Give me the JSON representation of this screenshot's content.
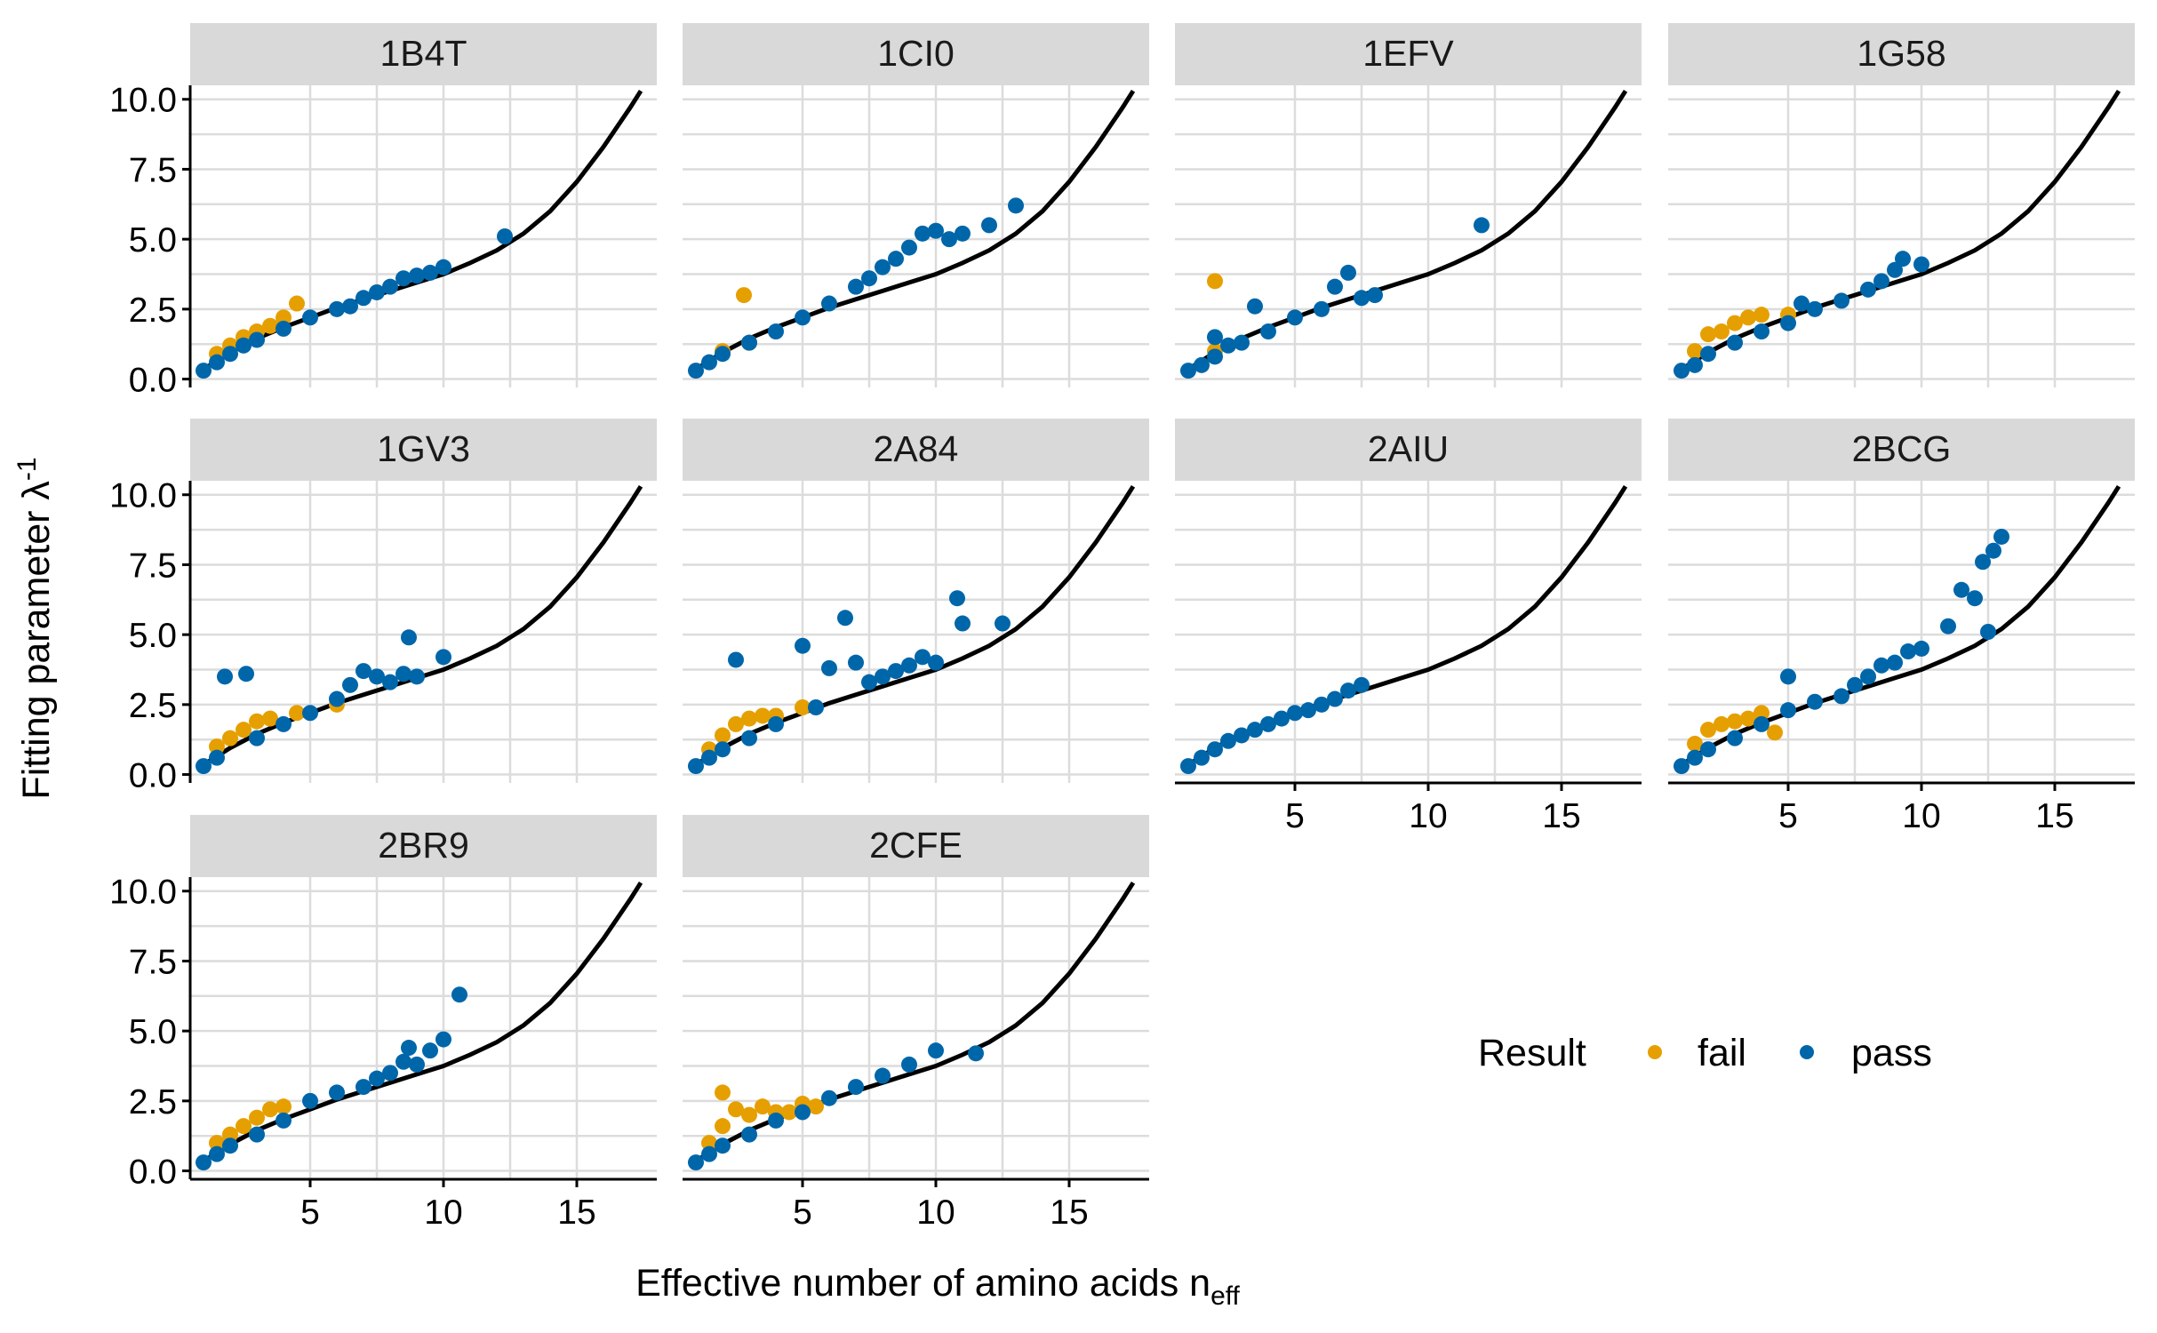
{
  "chart_data": {
    "type": "scatter",
    "facet_layout": "4 columns x 3 rows",
    "xlabel": "Effective number of amino acids n",
    "xlabel_subscript": "eff",
    "ylabel": "Fitting parameter λ",
    "ylabel_superscript": "-1",
    "xlim": [
      0.5,
      18
    ],
    "ylim": [
      -0.3,
      10.5
    ],
    "x_ticks": [
      "5",
      "10",
      "15"
    ],
    "y_ticks": [
      "0.0",
      "2.5",
      "5.0",
      "7.5",
      "10.0"
    ],
    "grid": true,
    "legend": {
      "title": "Result",
      "position": "bottom-right",
      "entries": [
        {
          "label": "fail",
          "color": "#E69F00"
        },
        {
          "label": "pass",
          "color": "#0066AA"
        }
      ]
    },
    "series_colors": {
      "fail": "#E69F00",
      "pass": "#0066AA",
      "curve": "#000000"
    },
    "curve": {
      "description": "theoretical relationship, same in every panel",
      "points": [
        [
          1,
          0.35
        ],
        [
          2,
          0.95
        ],
        [
          3,
          1.45
        ],
        [
          4,
          1.85
        ],
        [
          5,
          2.2
        ],
        [
          6,
          2.55
        ],
        [
          7,
          2.85
        ],
        [
          8,
          3.15
        ],
        [
          9,
          3.45
        ],
        [
          10,
          3.75
        ],
        [
          11,
          4.15
        ],
        [
          12,
          4.6
        ],
        [
          13,
          5.2
        ],
        [
          14,
          6.0
        ],
        [
          15,
          7.05
        ],
        [
          16,
          8.3
        ],
        [
          17,
          9.7
        ],
        [
          17.4,
          10.3
        ]
      ]
    },
    "panels": [
      {
        "label": "1B4T",
        "fail": [
          [
            1.5,
            0.9
          ],
          [
            2,
            1.2
          ],
          [
            2.5,
            1.5
          ],
          [
            3,
            1.7
          ],
          [
            3.5,
            1.9
          ],
          [
            4,
            2.2
          ],
          [
            4.5,
            2.7
          ]
        ],
        "pass": [
          [
            1,
            0.3
          ],
          [
            1.5,
            0.6
          ],
          [
            2,
            0.9
          ],
          [
            2.5,
            1.2
          ],
          [
            3,
            1.4
          ],
          [
            4,
            1.8
          ],
          [
            5,
            2.2
          ],
          [
            6,
            2.5
          ],
          [
            6.5,
            2.6
          ],
          [
            7,
            2.9
          ],
          [
            7.5,
            3.1
          ],
          [
            8,
            3.3
          ],
          [
            8.5,
            3.6
          ],
          [
            9,
            3.7
          ],
          [
            9.5,
            3.8
          ],
          [
            10,
            4.0
          ],
          [
            12.3,
            5.1
          ]
        ]
      },
      {
        "label": "1CI0",
        "fail": [
          [
            2.8,
            3.0
          ],
          [
            2,
            1.0
          ],
          [
            3,
            1.3
          ]
        ],
        "pass": [
          [
            1,
            0.3
          ],
          [
            1.5,
            0.6
          ],
          [
            2,
            0.9
          ],
          [
            3,
            1.3
          ],
          [
            4,
            1.7
          ],
          [
            5,
            2.2
          ],
          [
            6,
            2.7
          ],
          [
            7,
            3.3
          ],
          [
            7.5,
            3.6
          ],
          [
            8,
            4.0
          ],
          [
            8.5,
            4.3
          ],
          [
            9,
            4.7
          ],
          [
            9.5,
            5.2
          ],
          [
            10,
            5.3
          ],
          [
            10.5,
            5.0
          ],
          [
            11,
            5.2
          ],
          [
            12,
            5.5
          ],
          [
            13,
            6.2
          ]
        ]
      },
      {
        "label": "1EFV",
        "fail": [
          [
            2,
            3.5
          ],
          [
            2,
            1.0
          ]
        ],
        "pass": [
          [
            1,
            0.3
          ],
          [
            1.5,
            0.5
          ],
          [
            2,
            0.8
          ],
          [
            2,
            1.5
          ],
          [
            2.5,
            1.2
          ],
          [
            3,
            1.3
          ],
          [
            3.5,
            2.6
          ],
          [
            4,
            1.7
          ],
          [
            5,
            2.2
          ],
          [
            6,
            2.5
          ],
          [
            6.5,
            3.3
          ],
          [
            7,
            3.8
          ],
          [
            7.5,
            2.9
          ],
          [
            8,
            3.0
          ],
          [
            12,
            5.5
          ]
        ]
      },
      {
        "label": "1G58",
        "fail": [
          [
            1.5,
            1.0
          ],
          [
            2,
            1.6
          ],
          [
            2.5,
            1.7
          ],
          [
            3,
            2.0
          ],
          [
            3.5,
            2.2
          ],
          [
            4,
            2.3
          ],
          [
            5,
            2.3
          ]
        ],
        "pass": [
          [
            1,
            0.3
          ],
          [
            1.5,
            0.5
          ],
          [
            2,
            0.9
          ],
          [
            3,
            1.3
          ],
          [
            4,
            1.7
          ],
          [
            5,
            2.0
          ],
          [
            5.5,
            2.7
          ],
          [
            6,
            2.5
          ],
          [
            7,
            2.8
          ],
          [
            8,
            3.2
          ],
          [
            8.5,
            3.5
          ],
          [
            9,
            3.9
          ],
          [
            9.3,
            4.3
          ],
          [
            10,
            4.1
          ]
        ]
      },
      {
        "label": "1GV3",
        "fail": [
          [
            1.5,
            1.0
          ],
          [
            2,
            1.3
          ],
          [
            2.5,
            1.6
          ],
          [
            3,
            1.9
          ],
          [
            3.5,
            2.0
          ],
          [
            4.5,
            2.2
          ],
          [
            6,
            2.5
          ]
        ],
        "pass": [
          [
            1,
            0.3
          ],
          [
            1.5,
            0.6
          ],
          [
            1.8,
            3.5
          ],
          [
            2.6,
            3.6
          ],
          [
            3,
            1.3
          ],
          [
            4,
            1.8
          ],
          [
            5,
            2.2
          ],
          [
            6,
            2.7
          ],
          [
            6.5,
            3.2
          ],
          [
            7,
            3.7
          ],
          [
            7.5,
            3.5
          ],
          [
            8,
            3.3
          ],
          [
            8.5,
            3.6
          ],
          [
            9,
            3.5
          ],
          [
            8.7,
            4.9
          ],
          [
            10,
            4.2
          ]
        ]
      },
      {
        "label": "2A84",
        "fail": [
          [
            1.5,
            0.9
          ],
          [
            2,
            1.4
          ],
          [
            2.5,
            1.8
          ],
          [
            3,
            2.0
          ],
          [
            3.5,
            2.1
          ],
          [
            4,
            2.1
          ],
          [
            5,
            2.4
          ]
        ],
        "pass": [
          [
            1,
            0.3
          ],
          [
            1.5,
            0.6
          ],
          [
            2,
            0.9
          ],
          [
            2.5,
            4.1
          ],
          [
            3,
            1.3
          ],
          [
            4,
            1.8
          ],
          [
            5,
            4.6
          ],
          [
            5.5,
            2.4
          ],
          [
            6,
            3.8
          ],
          [
            6.6,
            5.6
          ],
          [
            7,
            4.0
          ],
          [
            7.5,
            3.3
          ],
          [
            8,
            3.5
          ],
          [
            8.5,
            3.7
          ],
          [
            9,
            3.9
          ],
          [
            9.5,
            4.2
          ],
          [
            10,
            4.0
          ],
          [
            10.8,
            6.3
          ],
          [
            11,
            5.4
          ],
          [
            12.5,
            5.4
          ]
        ]
      },
      {
        "label": "2AIU",
        "fail": [],
        "pass": [
          [
            1,
            0.3
          ],
          [
            1.5,
            0.6
          ],
          [
            2,
            0.9
          ],
          [
            2.5,
            1.2
          ],
          [
            3,
            1.4
          ],
          [
            3.5,
            1.6
          ],
          [
            4,
            1.8
          ],
          [
            4.5,
            2.0
          ],
          [
            5,
            2.2
          ],
          [
            5.5,
            2.3
          ],
          [
            6,
            2.5
          ],
          [
            6.5,
            2.7
          ],
          [
            7,
            3.0
          ],
          [
            7.5,
            3.2
          ]
        ]
      },
      {
        "label": "2BCG",
        "fail": [
          [
            1.5,
            1.1
          ],
          [
            2,
            1.6
          ],
          [
            2.5,
            1.8
          ],
          [
            3,
            1.9
          ],
          [
            3.5,
            2.0
          ],
          [
            4,
            2.2
          ],
          [
            4.5,
            1.5
          ]
        ],
        "pass": [
          [
            1,
            0.3
          ],
          [
            1.5,
            0.6
          ],
          [
            2,
            0.9
          ],
          [
            3,
            1.3
          ],
          [
            4,
            1.8
          ],
          [
            5,
            3.5
          ],
          [
            5,
            2.3
          ],
          [
            6,
            2.6
          ],
          [
            7,
            2.8
          ],
          [
            7.5,
            3.2
          ],
          [
            8,
            3.5
          ],
          [
            8.5,
            3.9
          ],
          [
            9,
            4.0
          ],
          [
            9.5,
            4.4
          ],
          [
            10,
            4.5
          ],
          [
            11,
            5.3
          ],
          [
            11.5,
            6.6
          ],
          [
            12,
            6.3
          ],
          [
            12.3,
            7.6
          ],
          [
            12.7,
            8.0
          ],
          [
            13,
            8.5
          ],
          [
            12.5,
            5.1
          ]
        ]
      },
      {
        "label": "2BR9",
        "fail": [
          [
            1.5,
            1.0
          ],
          [
            2,
            1.3
          ],
          [
            2.5,
            1.6
          ],
          [
            3,
            1.9
          ],
          [
            3.5,
            2.2
          ],
          [
            4,
            2.3
          ]
        ],
        "pass": [
          [
            1,
            0.3
          ],
          [
            1.5,
            0.6
          ],
          [
            2,
            0.9
          ],
          [
            3,
            1.3
          ],
          [
            4,
            1.8
          ],
          [
            5,
            2.5
          ],
          [
            6,
            2.8
          ],
          [
            7,
            3.0
          ],
          [
            7.5,
            3.3
          ],
          [
            8,
            3.5
          ],
          [
            8.5,
            3.9
          ],
          [
            8.7,
            4.4
          ],
          [
            9,
            3.8
          ],
          [
            9.5,
            4.3
          ],
          [
            10,
            4.7
          ],
          [
            10.6,
            6.3
          ]
        ]
      },
      {
        "label": "2CFE",
        "fail": [
          [
            1.5,
            1.0
          ],
          [
            2,
            2.8
          ],
          [
            2,
            1.6
          ],
          [
            2.5,
            2.2
          ],
          [
            3,
            2.0
          ],
          [
            3.5,
            2.3
          ],
          [
            4,
            2.1
          ],
          [
            4.5,
            2.1
          ],
          [
            5,
            2.4
          ],
          [
            5.5,
            2.3
          ]
        ],
        "pass": [
          [
            1,
            0.3
          ],
          [
            1.5,
            0.6
          ],
          [
            2,
            0.9
          ],
          [
            3,
            1.3
          ],
          [
            4,
            1.8
          ],
          [
            5,
            2.1
          ],
          [
            6,
            2.6
          ],
          [
            7,
            3.0
          ],
          [
            8,
            3.4
          ],
          [
            9,
            3.8
          ],
          [
            10,
            4.3
          ],
          [
            11.5,
            4.2
          ]
        ]
      }
    ]
  }
}
